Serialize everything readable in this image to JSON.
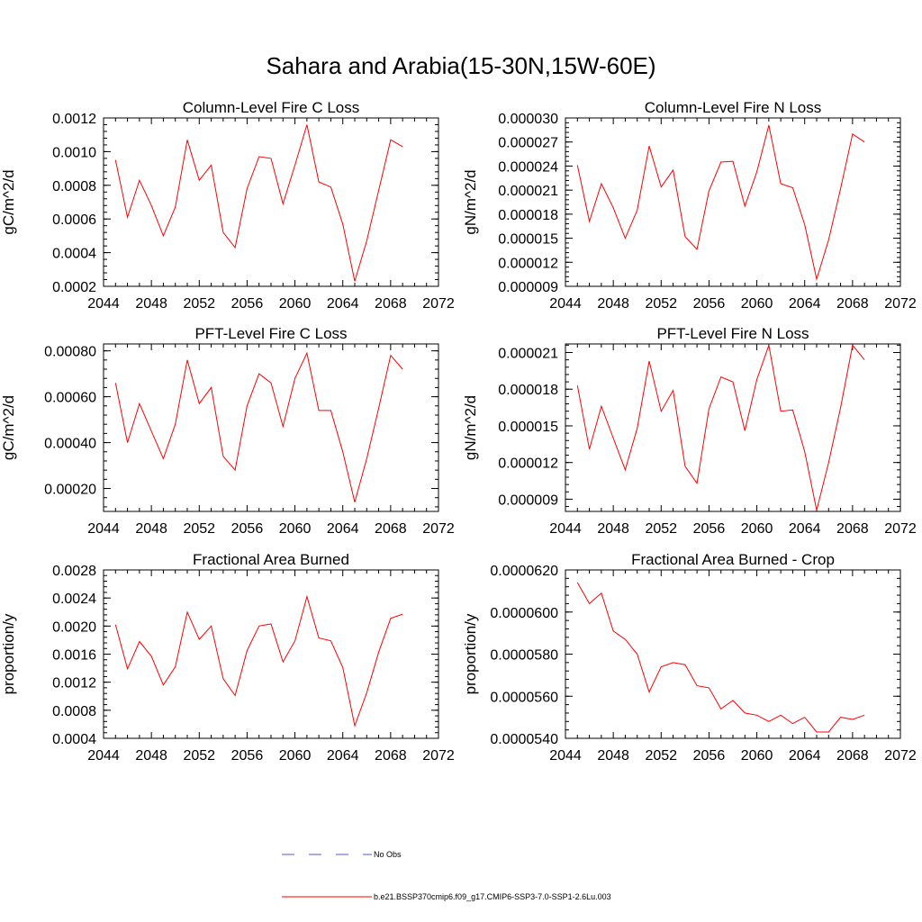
{
  "title": "Sahara and Arabia(15-30N,15W-60E)",
  "colors": {
    "series": "#ff0000",
    "obs": "#5555cc",
    "axis": "#000000"
  },
  "legend": {
    "obs_label": "No Obs",
    "model_label": "b.e21.BSSP370cmip6.f09_g17.CMIP6-SSP3-7.0-SSP1-2.6Lu.003"
  },
  "chart_data": [
    {
      "type": "line",
      "title": "Column-Level Fire C Loss",
      "ylabel": "gC/m^2/d",
      "xlim": [
        2044,
        2072
      ],
      "ylim": [
        0.0002,
        0.0012
      ],
      "xticks": [
        "2044",
        "2048",
        "2052",
        "2056",
        "2060",
        "2064",
        "2068",
        "2072"
      ],
      "yticks": [
        {
          "v": 0.0002,
          "t": "0.0002"
        },
        {
          "v": 0.0004,
          "t": "0.0004"
        },
        {
          "v": 0.0006,
          "t": "0.0006"
        },
        {
          "v": 0.0008,
          "t": "0.0008"
        },
        {
          "v": 0.001,
          "t": "0.0010"
        },
        {
          "v": 0.0012,
          "t": "0.0012"
        }
      ],
      "x": [
        2045,
        2046,
        2047,
        2048,
        2049,
        2050,
        2051,
        2052,
        2053,
        2054,
        2055,
        2056,
        2057,
        2058,
        2059,
        2060,
        2061,
        2062,
        2063,
        2064,
        2065,
        2066,
        2067,
        2068,
        2069
      ],
      "series": [
        {
          "values": [
            0.00095,
            0.00061,
            0.00083,
            0.00068,
            0.0005,
            0.00067,
            0.00107,
            0.00083,
            0.00092,
            0.00052,
            0.00043,
            0.00078,
            0.00097,
            0.00096,
            0.00069,
            0.00092,
            0.00116,
            0.00082,
            0.00079,
            0.00057,
            0.00023,
            0.00047,
            0.00077,
            0.00107,
            0.00103
          ]
        }
      ]
    },
    {
      "type": "line",
      "title": "Column-Level Fire N Loss",
      "ylabel": "gN/m^2/d",
      "xlim": [
        2044,
        2072
      ],
      "ylim": [
        9e-06,
        3e-05
      ],
      "xticks": [
        "2044",
        "2048",
        "2052",
        "2056",
        "2060",
        "2064",
        "2068",
        "2072"
      ],
      "yticks": [
        {
          "v": 9e-06,
          "t": "0.000009"
        },
        {
          "v": 1.2e-05,
          "t": "0.000012"
        },
        {
          "v": 1.5e-05,
          "t": "0.000015"
        },
        {
          "v": 1.8e-05,
          "t": "0.000018"
        },
        {
          "v": 2.1e-05,
          "t": "0.000021"
        },
        {
          "v": 2.4e-05,
          "t": "0.000024"
        },
        {
          "v": 2.7e-05,
          "t": "0.000027"
        },
        {
          "v": 3e-05,
          "t": "0.000030"
        }
      ],
      "x": [
        2045,
        2046,
        2047,
        2048,
        2049,
        2050,
        2051,
        2052,
        2053,
        2054,
        2055,
        2056,
        2057,
        2058,
        2059,
        2060,
        2061,
        2062,
        2063,
        2064,
        2065,
        2066,
        2067,
        2068,
        2069
      ],
      "series": [
        {
          "values": [
            2.41e-05,
            1.71e-05,
            2.18e-05,
            1.88e-05,
            1.5e-05,
            1.85e-05,
            2.65e-05,
            2.14e-05,
            2.35e-05,
            1.52e-05,
            1.36e-05,
            2.09e-05,
            2.45e-05,
            2.46e-05,
            1.9e-05,
            2.33e-05,
            2.91e-05,
            2.18e-05,
            2.13e-05,
            1.67e-05,
            9.9e-06,
            1.48e-05,
            2.12e-05,
            2.8e-05,
            2.7e-05
          ]
        }
      ]
    },
    {
      "type": "line",
      "title": "PFT-Level Fire C Loss",
      "ylabel": "gC/m^2/d",
      "xlim": [
        2044,
        2072
      ],
      "ylim": [
        0.0001,
        0.00083
      ],
      "xticks": [
        "2044",
        "2048",
        "2052",
        "2056",
        "2060",
        "2064",
        "2068",
        "2072"
      ],
      "yticks": [
        {
          "v": 0.0002,
          "t": "0.00020"
        },
        {
          "v": 0.0004,
          "t": "0.00040"
        },
        {
          "v": 0.0006,
          "t": "0.00060"
        },
        {
          "v": 0.0008,
          "t": "0.00080"
        }
      ],
      "x": [
        2045,
        2046,
        2047,
        2048,
        2049,
        2050,
        2051,
        2052,
        2053,
        2054,
        2055,
        2056,
        2057,
        2058,
        2059,
        2060,
        2061,
        2062,
        2063,
        2064,
        2065,
        2066,
        2067,
        2068,
        2069
      ],
      "series": [
        {
          "values": [
            0.00066,
            0.0004,
            0.00057,
            0.00045,
            0.00033,
            0.00048,
            0.00076,
            0.00057,
            0.00064,
            0.00034,
            0.00028,
            0.00056,
            0.0007,
            0.00066,
            0.00047,
            0.00068,
            0.00079,
            0.00054,
            0.00054,
            0.00036,
            0.00014,
            0.00033,
            0.00055,
            0.00078,
            0.00072
          ]
        }
      ]
    },
    {
      "type": "line",
      "title": "PFT-Level Fire N Loss",
      "ylabel": "gN/m^2/d",
      "xlim": [
        2044,
        2072
      ],
      "ylim": [
        8e-06,
        2.17e-05
      ],
      "xticks": [
        "2044",
        "2048",
        "2052",
        "2056",
        "2060",
        "2064",
        "2068",
        "2072"
      ],
      "yticks": [
        {
          "v": 9e-06,
          "t": "0.000009"
        },
        {
          "v": 1.2e-05,
          "t": "0.000012"
        },
        {
          "v": 1.5e-05,
          "t": "0.000015"
        },
        {
          "v": 1.8e-05,
          "t": "0.000018"
        },
        {
          "v": 2.1e-05,
          "t": "0.000021"
        }
      ],
      "x": [
        2045,
        2046,
        2047,
        2048,
        2049,
        2050,
        2051,
        2052,
        2053,
        2054,
        2055,
        2056,
        2057,
        2058,
        2059,
        2060,
        2061,
        2062,
        2063,
        2064,
        2065,
        2066,
        2067,
        2068,
        2069
      ],
      "series": [
        {
          "values": [
            1.83e-05,
            1.31e-05,
            1.66e-05,
            1.4e-05,
            1.14e-05,
            1.48e-05,
            2.03e-05,
            1.62e-05,
            1.79e-05,
            1.17e-05,
            1.03e-05,
            1.64e-05,
            1.9e-05,
            1.86e-05,
            1.46e-05,
            1.88e-05,
            2.16e-05,
            1.62e-05,
            1.63e-05,
            1.29e-05,
            8.1e-06,
            1.2e-05,
            1.65e-05,
            2.16e-05,
            2.04e-05
          ]
        }
      ]
    },
    {
      "type": "line",
      "title": "Fractional Area Burned",
      "ylabel": "proportion/y",
      "xlim": [
        2044,
        2072
      ],
      "ylim": [
        0.0004,
        0.0028
      ],
      "xticks": [
        "2044",
        "2048",
        "2052",
        "2056",
        "2060",
        "2064",
        "2068",
        "2072"
      ],
      "yticks": [
        {
          "v": 0.0004,
          "t": "0.0004"
        },
        {
          "v": 0.0008,
          "t": "0.0008"
        },
        {
          "v": 0.0012,
          "t": "0.0012"
        },
        {
          "v": 0.0016,
          "t": "0.0016"
        },
        {
          "v": 0.002,
          "t": "0.0020"
        },
        {
          "v": 0.0024,
          "t": "0.0024"
        },
        {
          "v": 0.0028,
          "t": "0.0028"
        }
      ],
      "x": [
        2045,
        2046,
        2047,
        2048,
        2049,
        2050,
        2051,
        2052,
        2053,
        2054,
        2055,
        2056,
        2057,
        2058,
        2059,
        2060,
        2061,
        2062,
        2063,
        2064,
        2065,
        2066,
        2067,
        2068,
        2069
      ],
      "series": [
        {
          "values": [
            0.00202,
            0.00139,
            0.00178,
            0.00157,
            0.00116,
            0.00142,
            0.0022,
            0.00181,
            0.002,
            0.00125,
            0.00101,
            0.00165,
            0.002,
            0.00203,
            0.00149,
            0.00179,
            0.00242,
            0.00183,
            0.00179,
            0.00141,
            0.00058,
            0.00105,
            0.00163,
            0.00211,
            0.00217
          ]
        }
      ]
    },
    {
      "type": "line",
      "title": "Fractional Area Burned - Crop",
      "ylabel": "proportion/y",
      "xlim": [
        2044,
        2072
      ],
      "ylim": [
        5.4e-05,
        6.2e-05
      ],
      "xticks": [
        "2044",
        "2048",
        "2052",
        "2056",
        "2060",
        "2064",
        "2068",
        "2072"
      ],
      "yticks": [
        {
          "v": 5.4e-05,
          "t": "0.0000540"
        },
        {
          "v": 5.6e-05,
          "t": "0.0000560"
        },
        {
          "v": 5.8e-05,
          "t": "0.0000580"
        },
        {
          "v": 6e-05,
          "t": "0.0000600"
        },
        {
          "v": 6.2e-05,
          "t": "0.0000620"
        }
      ],
      "x": [
        2045,
        2046,
        2047,
        2048,
        2049,
        2050,
        2051,
        2052,
        2053,
        2054,
        2055,
        2056,
        2057,
        2058,
        2059,
        2060,
        2061,
        2062,
        2063,
        2064,
        2065,
        2066,
        2067,
        2068,
        2069
      ],
      "series": [
        {
          "values": [
            6.14e-05,
            6.04e-05,
            6.09e-05,
            5.91e-05,
            5.87e-05,
            5.8e-05,
            5.62e-05,
            5.74e-05,
            5.76e-05,
            5.75e-05,
            5.65e-05,
            5.64e-05,
            5.54e-05,
            5.58e-05,
            5.52e-05,
            5.51e-05,
            5.48e-05,
            5.51e-05,
            5.47e-05,
            5.5e-05,
            5.43e-05,
            5.43e-05,
            5.5e-05,
            5.49e-05,
            5.51e-05
          ]
        }
      ]
    }
  ]
}
